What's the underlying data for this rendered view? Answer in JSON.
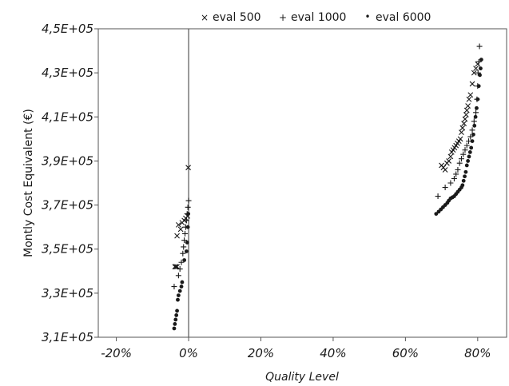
{
  "chart_data": {
    "type": "scatter",
    "xlabel": "Quality Level",
    "ylabel": "Montly Cost Equivalent (€)",
    "xlim": [
      -0.25,
      0.88
    ],
    "ylim": [
      310000,
      450000
    ],
    "x_ticks": [
      -0.2,
      0,
      0.2,
      0.4,
      0.6,
      0.8
    ],
    "x_tick_labels": [
      "-20%",
      "0%",
      "20%",
      "40%",
      "60%",
      "80%"
    ],
    "y_ticks": [
      310000,
      330000,
      350000,
      370000,
      390000,
      410000,
      430000,
      450000
    ],
    "y_tick_labels": [
      "3,1E+05",
      "3,3E+05",
      "3,5E+05",
      "3,7E+05",
      "3,9E+05",
      "4,1E+05",
      "4,3E+05",
      "4,5E+05"
    ],
    "grid": false,
    "legend_position": "top",
    "colors": {
      "marker": "#1a1a1a",
      "axis": "#555555"
    },
    "series": [
      {
        "name": "eval 500",
        "marker": "x",
        "points": [
          [
            -0.001,
            387000
          ],
          [
            -0.003,
            365000
          ],
          [
            -0.008,
            364000
          ],
          [
            -0.012,
            363000
          ],
          [
            -0.018,
            362000
          ],
          [
            -0.022,
            359000
          ],
          [
            -0.028,
            361000
          ],
          [
            -0.032,
            356000
          ],
          [
            -0.038,
            342000
          ],
          [
            -0.035,
            342000
          ],
          [
            -0.032,
            342000
          ],
          [
            0.7,
            388000
          ],
          [
            0.705,
            387000
          ],
          [
            0.71,
            386000
          ],
          [
            0.715,
            389000
          ],
          [
            0.72,
            390000
          ],
          [
            0.725,
            392000
          ],
          [
            0.728,
            394000
          ],
          [
            0.732,
            395000
          ],
          [
            0.736,
            396000
          ],
          [
            0.74,
            397000
          ],
          [
            0.744,
            398000
          ],
          [
            0.748,
            399000
          ],
          [
            0.752,
            400000
          ],
          [
            0.755,
            403000
          ],
          [
            0.758,
            405000
          ],
          [
            0.762,
            407000
          ],
          [
            0.765,
            409000
          ],
          [
            0.768,
            411000
          ],
          [
            0.77,
            413000
          ],
          [
            0.773,
            415000
          ],
          [
            0.776,
            418000
          ],
          [
            0.78,
            420000
          ],
          [
            0.785,
            425000
          ],
          [
            0.79,
            430000
          ],
          [
            0.795,
            432000
          ],
          [
            0.8,
            434000
          ]
        ]
      },
      {
        "name": "eval 1000",
        "marker": "+",
        "points": [
          [
            0.0,
            372000
          ],
          [
            -0.002,
            369000
          ],
          [
            -0.004,
            366000
          ],
          [
            -0.006,
            363000
          ],
          [
            -0.008,
            360000
          ],
          [
            -0.01,
            357000
          ],
          [
            -0.012,
            354000
          ],
          [
            -0.014,
            351000
          ],
          [
            -0.016,
            348000
          ],
          [
            -0.02,
            344000
          ],
          [
            -0.024,
            341000
          ],
          [
            -0.028,
            338000
          ],
          [
            -0.04,
            333000
          ],
          [
            0.69,
            374000
          ],
          [
            0.71,
            378000
          ],
          [
            0.725,
            380000
          ],
          [
            0.735,
            382000
          ],
          [
            0.74,
            384000
          ],
          [
            0.745,
            386000
          ],
          [
            0.75,
            389000
          ],
          [
            0.755,
            391000
          ],
          [
            0.76,
            393000
          ],
          [
            0.765,
            395000
          ],
          [
            0.77,
            397000
          ],
          [
            0.775,
            399000
          ],
          [
            0.78,
            401000
          ],
          [
            0.785,
            404000
          ],
          [
            0.79,
            408000
          ],
          [
            0.795,
            412000
          ],
          [
            0.798,
            418000
          ],
          [
            0.8,
            424000
          ],
          [
            0.801,
            430000
          ],
          [
            0.803,
            435000
          ],
          [
            0.805,
            442000
          ]
        ]
      },
      {
        "name": "eval 6000",
        "marker": "dot",
        "points": [
          [
            -0.001,
            366000
          ],
          [
            -0.002,
            360000
          ],
          [
            -0.004,
            353000
          ],
          [
            -0.006,
            349000
          ],
          [
            -0.012,
            345000
          ],
          [
            -0.018,
            335000
          ],
          [
            -0.02,
            333000
          ],
          [
            -0.024,
            331000
          ],
          [
            -0.028,
            329000
          ],
          [
            -0.03,
            327000
          ],
          [
            -0.032,
            322000
          ],
          [
            -0.034,
            320000
          ],
          [
            -0.036,
            318000
          ],
          [
            -0.038,
            316000
          ],
          [
            -0.04,
            314000
          ],
          [
            0.685,
            366000
          ],
          [
            0.692,
            367000
          ],
          [
            0.698,
            368000
          ],
          [
            0.704,
            369000
          ],
          [
            0.71,
            370000
          ],
          [
            0.716,
            371000
          ],
          [
            0.72,
            372000
          ],
          [
            0.725,
            373000
          ],
          [
            0.73,
            373500
          ],
          [
            0.735,
            374000
          ],
          [
            0.74,
            375000
          ],
          [
            0.745,
            376000
          ],
          [
            0.75,
            377000
          ],
          [
            0.755,
            378000
          ],
          [
            0.758,
            379000
          ],
          [
            0.761,
            381000
          ],
          [
            0.764,
            383000
          ],
          [
            0.767,
            385000
          ],
          [
            0.77,
            388000
          ],
          [
            0.773,
            390000
          ],
          [
            0.776,
            392000
          ],
          [
            0.779,
            394000
          ],
          [
            0.782,
            396000
          ],
          [
            0.785,
            399000
          ],
          [
            0.788,
            402000
          ],
          [
            0.791,
            406000
          ],
          [
            0.794,
            410000
          ],
          [
            0.797,
            414000
          ],
          [
            0.8,
            418000
          ],
          [
            0.803,
            424000
          ],
          [
            0.806,
            429000
          ],
          [
            0.808,
            432000
          ],
          [
            0.81,
            436000
          ]
        ]
      }
    ]
  }
}
